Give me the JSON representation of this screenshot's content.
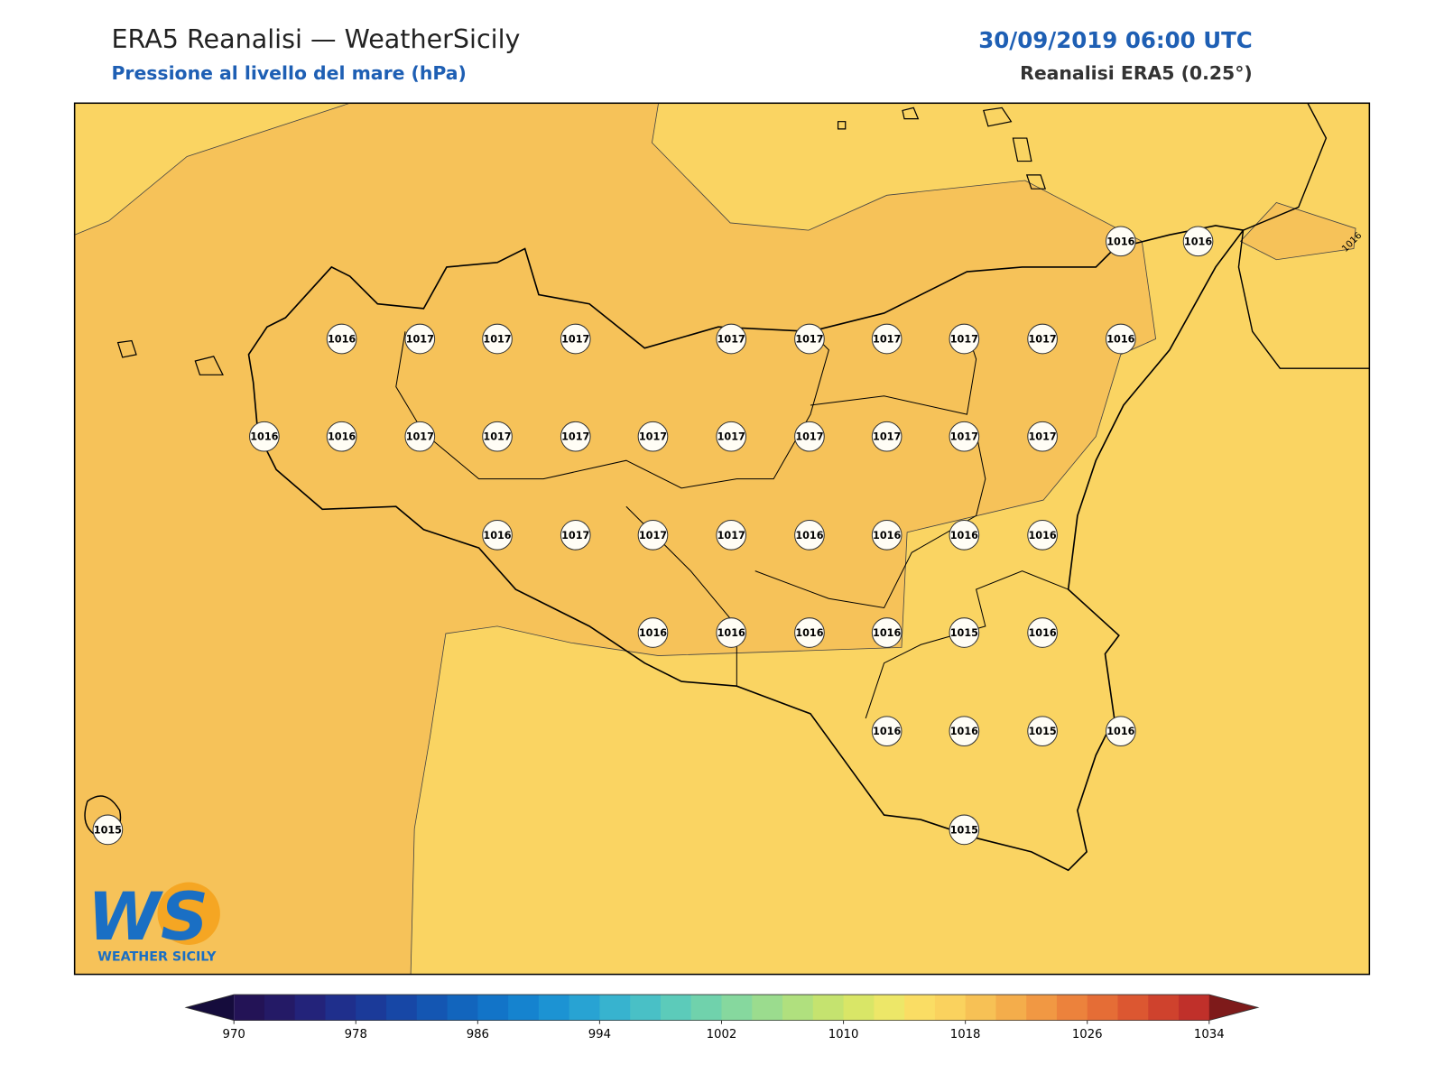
{
  "header": {
    "title": "ERA5 Reanalisi — WeatherSicily",
    "subtitle": "Pressione al livello del mare (hPa)",
    "datetime": "30/09/2019 06:00 UTC",
    "source": "Reanalisi ERA5 (0.25°)"
  },
  "map": {
    "station_labels": [
      1016,
      1016,
      1016,
      1017,
      1017,
      1017,
      1017,
      1017,
      1017,
      1017,
      1017,
      1016,
      1016,
      1016,
      1017,
      1017,
      1017,
      1017,
      1017,
      1017,
      1017,
      1017,
      1017,
      1016,
      1017,
      1017,
      1017,
      1016,
      1016,
      1016,
      1016,
      1016,
      1016,
      1016,
      1016,
      1015,
      1016,
      1016,
      1016,
      1015,
      1016,
      1015,
      1015
    ],
    "contour_labels": [
      1016
    ]
  },
  "colorbar": {
    "range": [
      970,
      1034
    ],
    "ticks": [
      970,
      978,
      986,
      994,
      1002,
      1010,
      1018,
      1026,
      1034
    ],
    "colors": [
      "#231356",
      "#241a66",
      "#23237a",
      "#1f2f8c",
      "#1b3a99",
      "#1747a6",
      "#1456b2",
      "#1265bd",
      "#1274c8",
      "#1583cf",
      "#1c93d3",
      "#28a3d3",
      "#37b3cf",
      "#49c0c6",
      "#5ccbba",
      "#70d2ac",
      "#86d89e",
      "#9bdc8e",
      "#b0e07e",
      "#c5e36f",
      "#d9e667",
      "#ede768",
      "#fadd64",
      "#fad25e",
      "#f7c155",
      "#f4ad4b",
      "#f19843",
      "#ec823c",
      "#e56d36",
      "#dc5731",
      "#cf422d",
      "#c0302a"
    ],
    "extend_colors": [
      "#150c3c",
      "#7e1a1a"
    ]
  },
  "logo": {
    "mark": "WS",
    "name": "WEATHER SICILY"
  }
}
